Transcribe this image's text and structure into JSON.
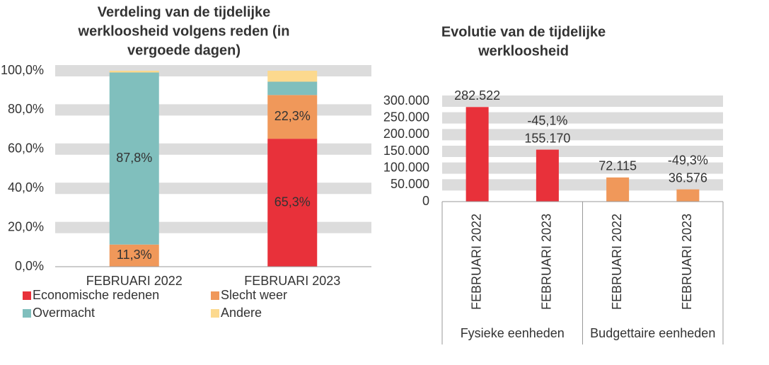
{
  "chart_data": [
    {
      "type": "stacked-bar",
      "title": [
        "Verdeling van de tijdelijke",
        "werkloosheid volgens reden (in",
        "vergoede dagen)"
      ],
      "categories": [
        "FEBRUARI 2022",
        "FEBRUARI 2023"
      ],
      "series": [
        {
          "name": "Economische redenen",
          "color": "#e8313a",
          "values": [
            0,
            65.3
          ],
          "value_labels": [
            null,
            "65,3%"
          ]
        },
        {
          "name": "Slecht weer",
          "color": "#f0985a",
          "values": [
            11.3,
            22.3
          ],
          "value_labels": [
            "11,3%",
            "22,3%"
          ]
        },
        {
          "name": "Overmacht",
          "color": "#80bfbd",
          "values": [
            87.8,
            6.8
          ],
          "value_labels": [
            "87,8%",
            null
          ]
        },
        {
          "name": "Andere",
          "color": "#fcd98e",
          "values": [
            0.9,
            5.6
          ],
          "value_labels": [
            null,
            null
          ]
        }
      ],
      "ylim": [
        0,
        100
      ],
      "yticks": [
        {
          "value": 0,
          "label": "0,0%"
        },
        {
          "value": 20,
          "label": "20,0%"
        },
        {
          "value": 40,
          "label": "40,0%"
        },
        {
          "value": 60,
          "label": "60,0%"
        },
        {
          "value": 80,
          "label": "80,0%"
        },
        {
          "value": 100,
          "label": "100,0%"
        }
      ],
      "grid": true
    },
    {
      "type": "bar",
      "title": [
        "Evolutie van de tijdelijke",
        "werkloosheid"
      ],
      "categories": [
        "FEBRUARI 2022",
        "FEBRUARI 2023",
        "FEBRUARI 2022",
        "FEBRUARI 2023"
      ],
      "groups": [
        "Fysieke eenheden",
        "Budgettaire eenheden"
      ],
      "values": [
        282522,
        155170,
        72115,
        36576
      ],
      "value_labels": [
        "282.522",
        "155.170",
        "72.115",
        "36.576"
      ],
      "change_labels": [
        null,
        "-45,1%",
        null,
        "-49,3%"
      ],
      "colors": [
        "#e8313a",
        "#e8313a",
        "#f0985a",
        "#f0985a"
      ],
      "ylim": [
        0,
        300000
      ],
      "yticks": [
        0,
        {
          "value": 50000,
          "label": "50.000"
        },
        {
          "value": 100000,
          "label": "100.000"
        },
        {
          "value": 150000,
          "label": "150.000"
        },
        {
          "value": 200000,
          "label": "200.000"
        },
        {
          "value": 250000,
          "label": "250.000"
        },
        {
          "value": 300000,
          "label": "300.000"
        }
      ],
      "grid": true
    }
  ]
}
